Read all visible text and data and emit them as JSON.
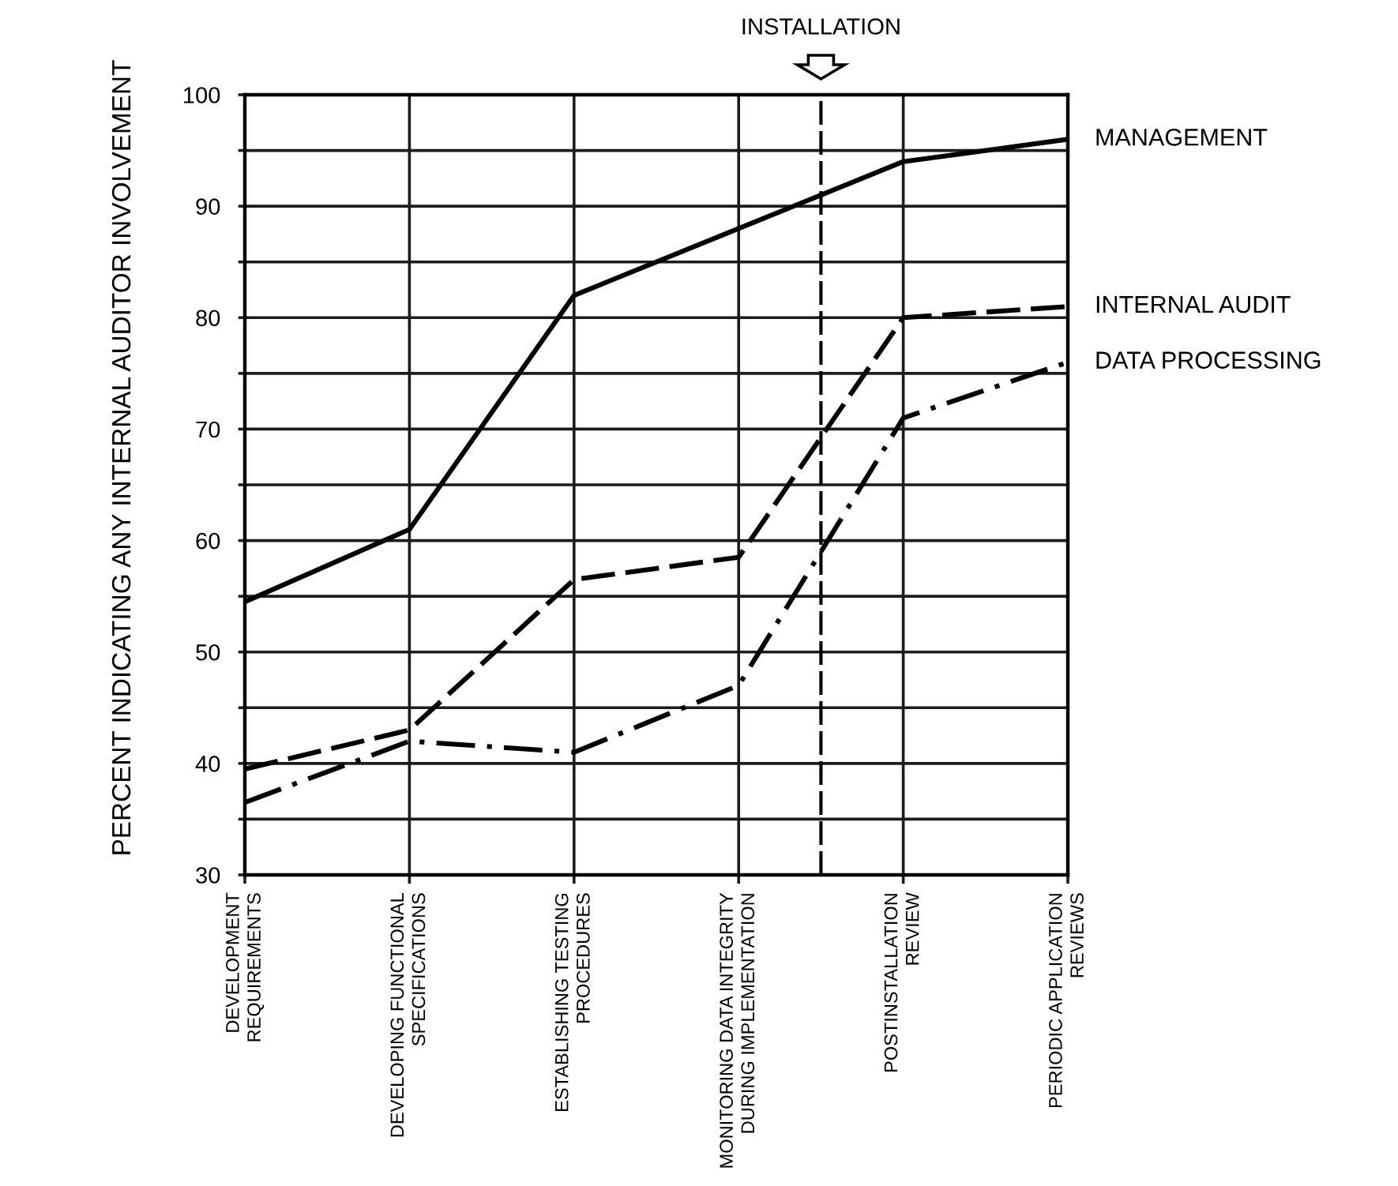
{
  "chart_data": {
    "type": "line",
    "ylabel": "PERCENT INDICATING ANY INTERNAL AUDITOR INVOLVEMENT",
    "categories": [
      "DEVELOPMENT\nREQUIREMENTS",
      "DEVELOPING FUNCTIONAL\nSPECIFICATIONS",
      "ESTABLISHING TESTING\nPROCEDURES",
      "MONITORING DATA INTEGRITY\nDURING IMPLEMENTATION",
      "POSTINSTALLATION\nREVIEW",
      "PERIODIC APPLICATION\nREVIEWS"
    ],
    "series": [
      {
        "name": "MANAGEMENT",
        "color": "#000000",
        "line_style": "solid",
        "values": [
          54.5,
          61,
          82,
          88,
          94,
          96
        ]
      },
      {
        "name": "INTERNAL AUDIT",
        "color": "#000000",
        "line_style": "dashed",
        "values": [
          39.5,
          43,
          56.5,
          58.5,
          80,
          81
        ]
      },
      {
        "name": "DATA PROCESSING",
        "color": "#000000",
        "line_style": "dashdot",
        "values": [
          36.5,
          42,
          41,
          47,
          71,
          76
        ]
      }
    ],
    "ylim": [
      30,
      100
    ],
    "yticks": [
      30,
      {
        "value": 35,
        "label": null
      },
      40,
      {
        "value": 45,
        "label": null
      },
      50,
      {
        "value": 55,
        "label": null
      },
      60,
      {
        "value": 65,
        "label": null
      },
      70,
      {
        "value": 75,
        "label": null
      },
      80,
      {
        "value": 85,
        "label": null
      },
      90,
      {
        "value": 95,
        "label": null
      },
      100
    ],
    "grid": true,
    "annotations": [
      "INSTALLATION"
    ]
  }
}
